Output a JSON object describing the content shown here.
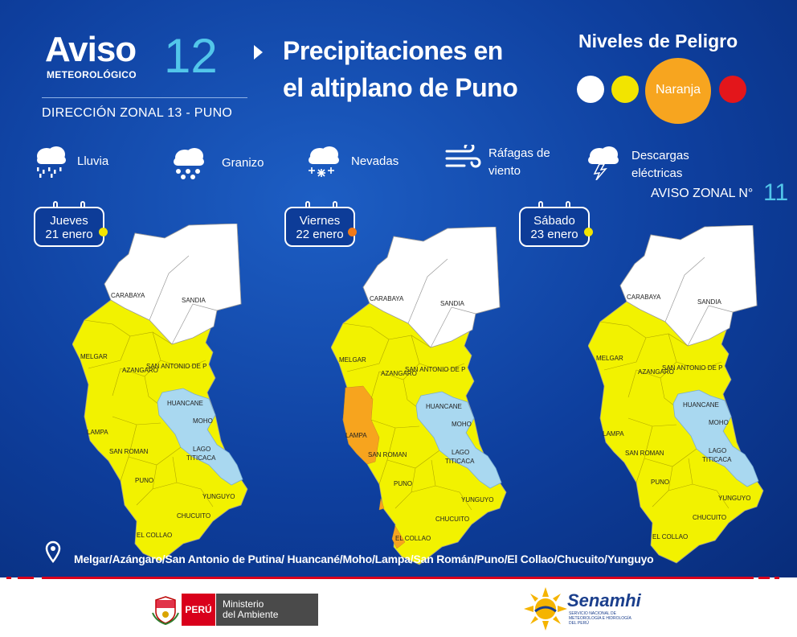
{
  "header": {
    "brand_word": "Aviso",
    "brand_sub": "METEOROLÓGICO",
    "brand_number": "12",
    "direccion": "DIRECCIÓN ZONAL 13 - PUNO",
    "title_line1": "Precipitaciones en",
    "title_line2": "el altiplano de Puno"
  },
  "niveles": {
    "title": "Niveles de Peligro",
    "selected_label": "Naranja",
    "colors": {
      "blanco": "#ffffff",
      "amarillo": "#f2e400",
      "naranja": "#f7a51f",
      "rojo": "#e3161b"
    }
  },
  "phenomena": [
    {
      "icon": "rain-cloud-icon",
      "line1": "Lluvia",
      "line2": ""
    },
    {
      "icon": "hail-cloud-icon",
      "line1": "Granizo",
      "line2": ""
    },
    {
      "icon": "snow-cloud-icon",
      "line1": "Nevadas",
      "line2": ""
    },
    {
      "icon": "wind-gust-icon",
      "line1": "Ráfagas de",
      "line2": "viento"
    },
    {
      "icon": "lightning-cloud-icon",
      "line1": "Descargas",
      "line2": "eléctricas"
    }
  ],
  "aviso_zonal": {
    "label": "AVISO ZONAL N°",
    "number": "11"
  },
  "days": [
    {
      "day": "Jueves",
      "date": "21 enero",
      "level_color": "#f2e400"
    },
    {
      "day": "Viernes",
      "date": "22 enero",
      "level_color": "#f07a1a"
    },
    {
      "day": "Sábado",
      "date": "23 enero",
      "level_color": "#f2e400"
    }
  ],
  "map_labels": {
    "carabaya": "CARABAYA",
    "sandia": "SANDIA",
    "melgar": "MELGAR",
    "azangaro": "AZANGARO",
    "san_antonio": "SAN ANTONIO DE P",
    "huancane": "HUANCANE",
    "moho": "MOHO",
    "lampa": "LAMPA",
    "san_roman": "SAN ROMAN",
    "lago": "LAGO",
    "titicaca": "TITICACA",
    "puno": "PUNO",
    "yunguyo": "YUNGUYO",
    "chucuito": "CHUCUITO",
    "el_collao": "EL COLLAO"
  },
  "map_colors": {
    "white": "#ffffff",
    "yellow": "#f2f200",
    "orange": "#f7a41e",
    "lake": "#a9d8f0"
  },
  "footer": {
    "provinces": "Melgar/Azángaro/San Antonio de Putina/ Huancané/Moho/Lampa/San Román/Puno/El Collao/Chucuito/Yunguyo"
  },
  "logos": {
    "peru": "PERÚ",
    "ministerio_line1": "Ministerio",
    "ministerio_line2": "del Ambiente",
    "senamhi": "Senamhi",
    "senamhi_sub": "SERVICIO NACIONAL DE METEOROLOGÍA E HIDROLOGÍA DEL PERÚ"
  }
}
